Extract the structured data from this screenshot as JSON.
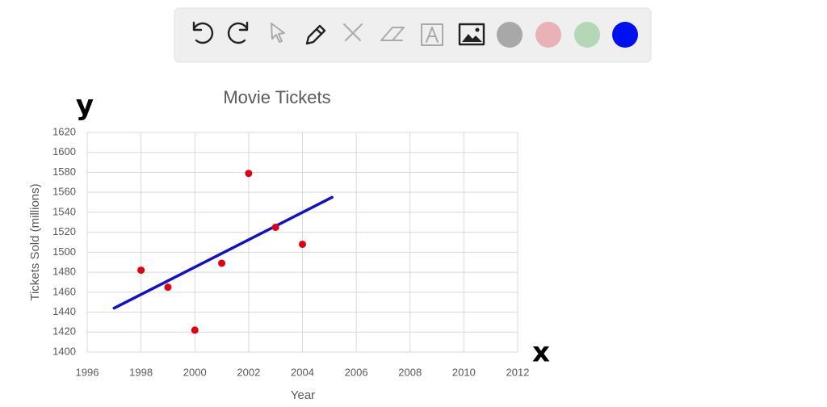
{
  "chart_data": {
    "type": "scatter",
    "title": "Movie Tickets",
    "xlabel": "Year",
    "ylabel": "Tickets Sold (millions)",
    "x": [
      1998,
      1999,
      2000,
      2001,
      2002,
      2003,
      2004
    ],
    "values": [
      1482,
      1465,
      1422,
      1489,
      1579,
      1525,
      1508
    ],
    "color": "#e00016",
    "trendline": {
      "x": [
        1997,
        2005.1
      ],
      "values": [
        1444,
        1555
      ],
      "color": "#1010c8"
    },
    "xlim": [
      1996,
      2012
    ],
    "xticks": [
      1996,
      1998,
      2000,
      2002,
      2004,
      2006,
      2008,
      2010,
      2012
    ],
    "ylim": [
      1400,
      1620
    ],
    "yticks": [
      1400,
      1420,
      1440,
      1460,
      1480,
      1500,
      1520,
      1540,
      1560,
      1580,
      1600,
      1620
    ],
    "grid": true,
    "annotations": [
      "y",
      "x"
    ]
  }
}
